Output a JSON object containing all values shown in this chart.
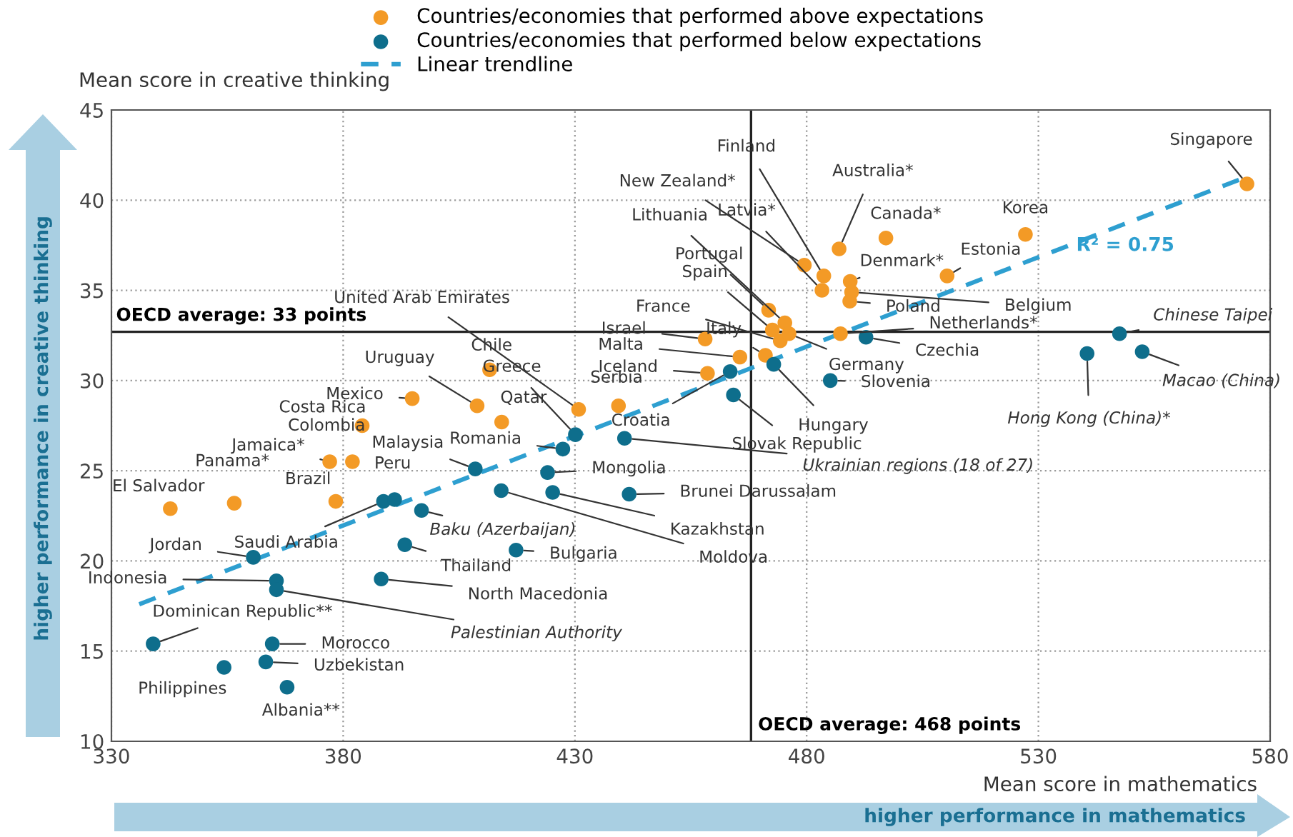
{
  "chart_data": {
    "type": "scatter",
    "xlabel": "Mean score in mathematics",
    "ylabel": "Mean score in creative thinking",
    "xlim": [
      330,
      580
    ],
    "xticks": [
      330,
      380,
      430,
      480,
      530,
      580
    ],
    "ylim": [
      10,
      45
    ],
    "yticks": [
      10,
      15,
      20,
      25,
      30,
      35,
      40,
      45
    ],
    "grid": true,
    "legend": "top",
    "series": [
      {
        "name": "Countries/economies that performed above expectations",
        "color": "#f39a26",
        "marker": "circle",
        "x": [
          575.0,
          527.2,
          497.1,
          487.0,
          510.3,
          483.7,
          479.5,
          483.3,
          489.4,
          489.7,
          489.3,
          475.3,
          471.8,
          472.6,
          474.3,
          458.1,
          471.1,
          465.6,
          476.2,
          487.3,
          458.6,
          430.8,
          411.6,
          408.9,
          394.9,
          414.2,
          439.4,
          384.1,
          382.0,
          377.1,
          356.5,
          342.7,
          378.4
        ],
        "values": [
          40.9,
          38.1,
          37.9,
          37.3,
          35.8,
          35.8,
          36.4,
          35.0,
          35.5,
          34.9,
          34.4,
          33.2,
          33.9,
          32.8,
          32.2,
          32.3,
          31.4,
          31.3,
          32.6,
          32.6,
          30.4,
          28.4,
          30.6,
          28.6,
          29.0,
          27.7,
          28.6,
          27.5,
          25.5,
          25.5,
          23.2,
          22.9,
          23.3
        ]
      },
      {
        "name": "Countries/economies that performed below expectations",
        "color": "#0e6e8c",
        "marker": "circle",
        "x": [
          492.8,
          472.9,
          463.5,
          464.2,
          485.1,
          547.5,
          540.5,
          552.4,
          430.1,
          427.4,
          440.7,
          408.5,
          388.7,
          391.1,
          396.9,
          424.1,
          425.2,
          414.1,
          441.7,
          417.3,
          393.3,
          388.2,
          360.6,
          365.6,
          365.6,
          339.0,
          364.7,
          363.3,
          354.3,
          367.9
        ],
        "values": [
          32.4,
          30.9,
          30.5,
          29.2,
          30.0,
          32.6,
          31.5,
          31.6,
          27.0,
          26.2,
          26.8,
          25.1,
          23.3,
          23.4,
          22.8,
          24.9,
          23.8,
          23.9,
          23.7,
          20.6,
          20.9,
          19.0,
          20.2,
          18.9,
          18.4,
          15.4,
          15.4,
          14.4,
          14.1,
          13.0
        ]
      },
      {
        "name": "Linear trendline",
        "type": "line",
        "line_style": "dashed",
        "color": "#2e9fd0",
        "x": [
          336,
          574
        ],
        "values": [
          17.6,
          41.2
        ]
      }
    ],
    "ref_lines": [
      {
        "axis": "y",
        "value": 32.7,
        "label": "OECD average: 33 points"
      },
      {
        "axis": "x",
        "value": 468,
        "label": "OECD average: 468 points"
      }
    ],
    "annotations": [
      {
        "text": "Singapore",
        "x": 575.0,
        "y": 40.9
      },
      {
        "text": "Korea",
        "x": 527.2,
        "y": 38.1
      },
      {
        "text": "Canada*",
        "x": 497.1,
        "y": 37.9
      },
      {
        "text": "Australia*",
        "x": 487.0,
        "y": 37.3
      },
      {
        "text": "Estonia",
        "x": 510.3,
        "y": 35.8
      },
      {
        "text": "Finland",
        "x": 483.7,
        "y": 35.8
      },
      {
        "text": "New Zealand*",
        "x": 479.5,
        "y": 36.4
      },
      {
        "text": "Latvia*",
        "x": 483.3,
        "y": 35.0
      },
      {
        "text": "Denmark*",
        "x": 489.4,
        "y": 35.5
      },
      {
        "text": "Belgium",
        "x": 489.7,
        "y": 34.9
      },
      {
        "text": "Poland",
        "x": 489.3,
        "y": 34.4
      },
      {
        "text": "Lithuania",
        "x": 475.3,
        "y": 33.2
      },
      {
        "text": "Portugal",
        "x": 471.8,
        "y": 33.9
      },
      {
        "text": "Spain",
        "x": 472.6,
        "y": 32.8
      },
      {
        "text": "France",
        "x": 474.3,
        "y": 32.2
      },
      {
        "text": "Israel",
        "x": 458.1,
        "y": 32.3
      },
      {
        "text": "Italy",
        "x": 471.1,
        "y": 31.4
      },
      {
        "text": "Malta",
        "x": 465.6,
        "y": 31.3
      },
      {
        "text": "Germany",
        "x": 476.2,
        "y": 32.6
      },
      {
        "text": "Netherlands*",
        "x": 487.3,
        "y": 32.6
      },
      {
        "text": "Iceland",
        "x": 458.6,
        "y": 30.4
      },
      {
        "text": "United Arab Emirates",
        "x": 430.8,
        "y": 28.4
      },
      {
        "text": "Chile",
        "x": 411.6,
        "y": 30.6
      },
      {
        "text": "Uruguay",
        "x": 408.9,
        "y": 28.6
      },
      {
        "text": "Mexico",
        "x": 394.9,
        "y": 29.0
      },
      {
        "text": "Qatar",
        "x": 414.2,
        "y": 27.7
      },
      {
        "text": "Serbia",
        "x": 439.4,
        "y": 28.6
      },
      {
        "text": "Costa Rica",
        "x": 384.1,
        "y": 27.5
      },
      {
        "text": "Colombia",
        "x": 382.0,
        "y": 25.5
      },
      {
        "text": "Jamaica*",
        "x": 377.1,
        "y": 25.5
      },
      {
        "text": "Panama*",
        "x": 356.5,
        "y": 23.2
      },
      {
        "text": "El Salvador",
        "x": 342.7,
        "y": 22.9
      },
      {
        "text": "Brazil",
        "x": 378.4,
        "y": 23.3
      },
      {
        "text": "Czechia",
        "x": 492.8,
        "y": 32.4
      },
      {
        "text": "Hungary",
        "x": 472.9,
        "y": 30.9
      },
      {
        "text": "Croatia",
        "x": 463.5,
        "y": 30.5
      },
      {
        "text": "Slovak Republic",
        "x": 464.2,
        "y": 29.2
      },
      {
        "text": "Slovenia",
        "x": 485.1,
        "y": 30.0
      },
      {
        "text": "Chinese Taipei",
        "x": 547.5,
        "y": 32.6
      },
      {
        "text": "Hong Kong (China)*",
        "x": 540.5,
        "y": 31.5
      },
      {
        "text": "Macao (China)",
        "x": 552.4,
        "y": 31.6
      },
      {
        "text": "Greece",
        "x": 430.1,
        "y": 27.0
      },
      {
        "text": "Romania",
        "x": 427.4,
        "y": 26.2
      },
      {
        "text": "Ukrainian regions (18 of 27)",
        "x": 440.7,
        "y": 26.8
      },
      {
        "text": "Malaysia",
        "x": 408.5,
        "y": 25.1
      },
      {
        "text": "Saudi Arabia",
        "x": 388.7,
        "y": 23.3
      },
      {
        "text": "Peru",
        "x": 391.1,
        "y": 23.4
      },
      {
        "text": "Baku (Azerbaijan)",
        "x": 396.9,
        "y": 22.8
      },
      {
        "text": "Mongolia",
        "x": 424.1,
        "y": 24.9
      },
      {
        "text": "Kazakhstan",
        "x": 425.2,
        "y": 23.8
      },
      {
        "text": "Moldova",
        "x": 414.1,
        "y": 23.9
      },
      {
        "text": "Brunei Darussalam",
        "x": 441.7,
        "y": 23.7
      },
      {
        "text": "Bulgaria",
        "x": 417.3,
        "y": 20.6
      },
      {
        "text": "Thailand",
        "x": 393.3,
        "y": 20.9
      },
      {
        "text": "North Macedonia",
        "x": 388.2,
        "y": 19.0
      },
      {
        "text": "Jordan",
        "x": 360.6,
        "y": 20.2
      },
      {
        "text": "Indonesia",
        "x": 365.6,
        "y": 18.9
      },
      {
        "text": "Palestinian Authority",
        "x": 365.6,
        "y": 18.4
      },
      {
        "text": "Dominican Republic**",
        "x": 339.0,
        "y": 15.4
      },
      {
        "text": "Morocco",
        "x": 364.7,
        "y": 15.4
      },
      {
        "text": "Uzbekistan",
        "x": 363.3,
        "y": 14.4
      },
      {
        "text": "Philippines",
        "x": 354.3,
        "y": 14.1
      },
      {
        "text": "Albania**",
        "x": 367.9,
        "y": 13.0
      },
      "R² = 0.75",
      "higher performance in creative thinking",
      "higher performance in mathematics"
    ]
  }
}
